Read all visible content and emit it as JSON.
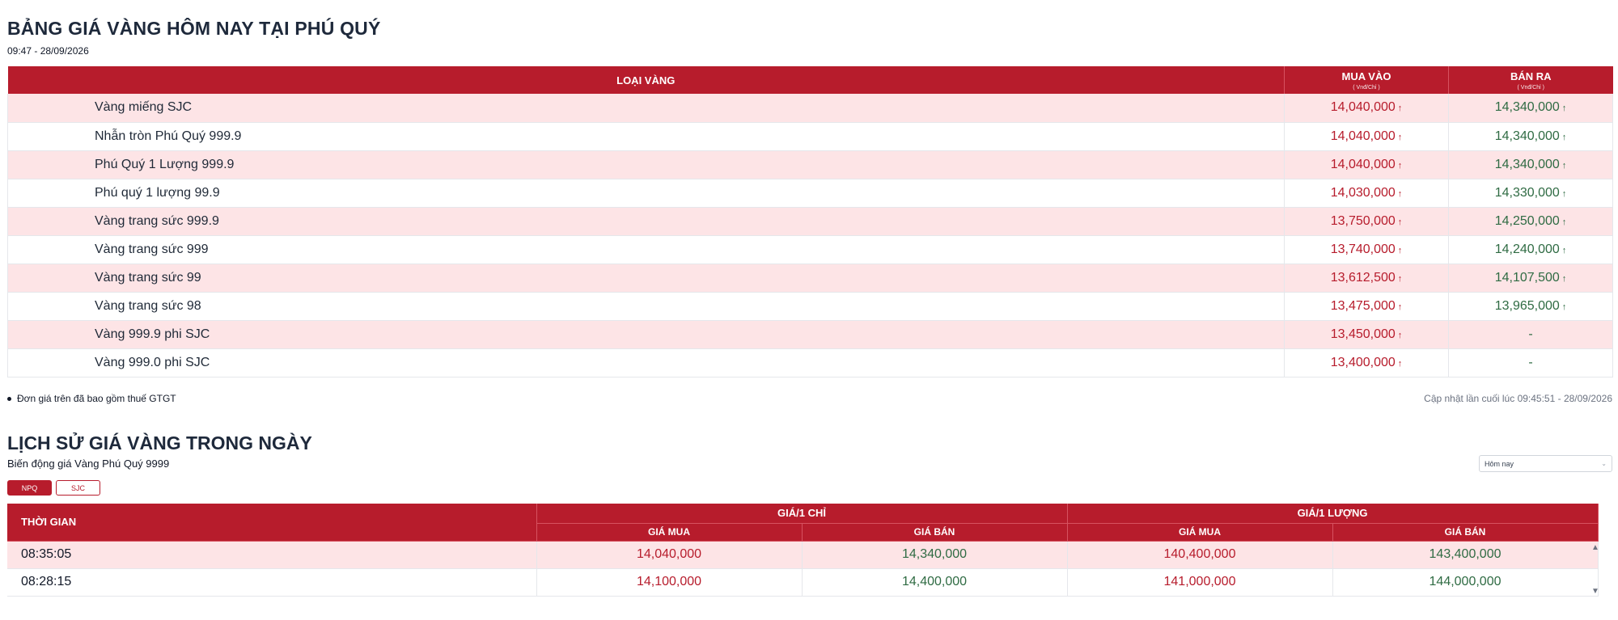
{
  "header": {
    "title": "BẢNG GIÁ VÀNG HÔM NAY TẠI PHÚ QUÝ",
    "timestamp": "09:47 - 28/09/2026"
  },
  "price_table": {
    "col_type": "LOẠI VÀNG",
    "col_buy": "MUA VÀO",
    "col_buy_unit": "( Vnđ/Chỉ )",
    "col_sell": "BÁN RA",
    "col_sell_unit": "( Vnđ/Chỉ )",
    "rows": [
      {
        "name": "Vàng miếng SJC",
        "buy": "14,040,000",
        "sell": "14,340,000"
      },
      {
        "name": "Nhẫn tròn Phú Quý 999.9",
        "buy": "14,040,000",
        "sell": "14,340,000"
      },
      {
        "name": "Phú Quý 1 Lượng 999.9",
        "buy": "14,040,000",
        "sell": "14,340,000"
      },
      {
        "name": "Phú quý 1 lượng 99.9",
        "buy": "14,030,000",
        "sell": "14,330,000"
      },
      {
        "name": "Vàng trang sức 999.9",
        "buy": "13,750,000",
        "sell": "14,250,000"
      },
      {
        "name": "Vàng trang sức 999",
        "buy": "13,740,000",
        "sell": "14,240,000"
      },
      {
        "name": "Vàng trang sức 99",
        "buy": "13,612,500",
        "sell": "14,107,500"
      },
      {
        "name": "Vàng trang sức 98",
        "buy": "13,475,000",
        "sell": "13,965,000"
      },
      {
        "name": "Vàng 999.9 phi SJC",
        "buy": "13,450,000",
        "sell": "-"
      },
      {
        "name": "Vàng 999.0 phi SJC",
        "buy": "13,400,000",
        "sell": "-"
      }
    ],
    "arrow": "↑"
  },
  "note": "Đơn giá trên đã bao gồm thuế GTGT",
  "updated": "Cập nhật lần cuối lúc 09:45:51 - 28/09/2026",
  "history": {
    "title": "LỊCH SỬ GIÁ VÀNG TRONG NGÀY",
    "subtitle": "Biến động giá Vàng Phú Quý 9999",
    "select_value": "Hôm nay",
    "tabs": [
      "NPQ",
      "SJC"
    ],
    "col_time": "THỜI GIAN",
    "group_chi": "GIÁ/1 CHỈ",
    "group_luong": "GIÁ/1 LƯỢNG",
    "col_buy": "GIÁ MUA",
    "col_sell": "GIÁ BÁN",
    "rows": [
      {
        "time": "08:35:05",
        "chi_buy": "14,040,000",
        "chi_sell": "14,340,000",
        "luong_buy": "140,400,000",
        "luong_sell": "143,400,000"
      },
      {
        "time": "08:28:15",
        "chi_buy": "14,100,000",
        "chi_sell": "14,400,000",
        "luong_buy": "141,000,000",
        "luong_sell": "144,000,000"
      }
    ]
  },
  "icons": {
    "up_arrow": "up-arrow-icon",
    "chevron": "chevron-down-icon",
    "scroll_up": "scroll-up-icon",
    "scroll_down": "scroll-down-icon"
  },
  "colors": {
    "brand_red": "#b71c2c",
    "row_pink": "#fde4e6",
    "sell_green": "#2f6b43"
  }
}
